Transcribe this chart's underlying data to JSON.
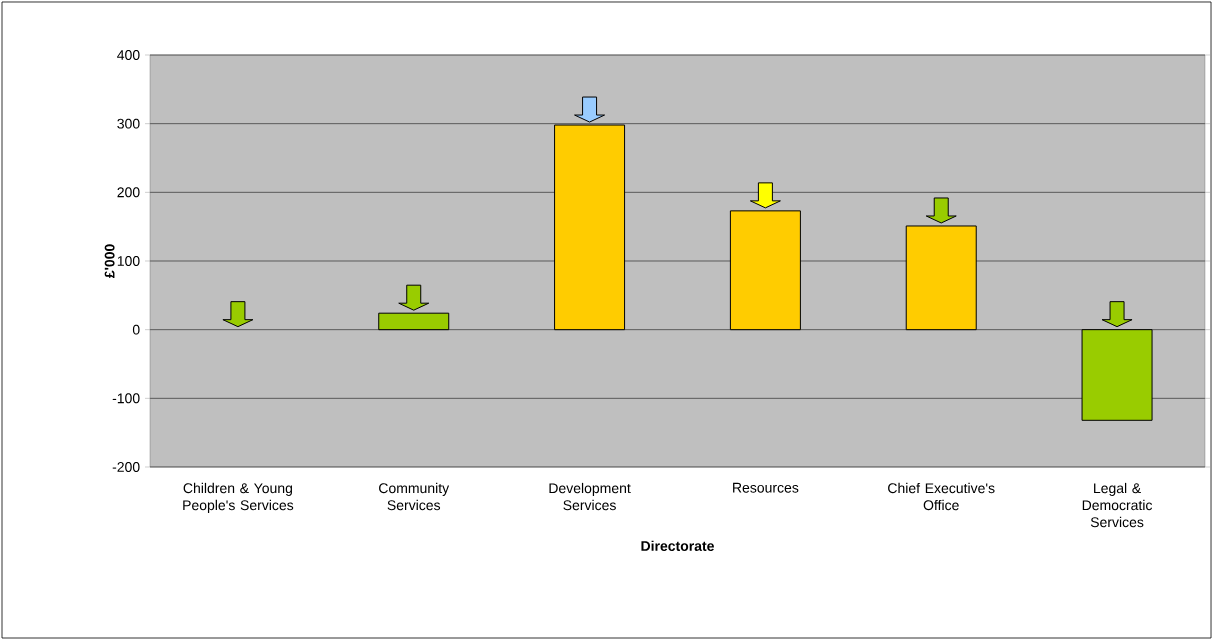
{
  "chart_data": {
    "type": "bar",
    "xlabel": "Directorate",
    "ylabel": "£'000",
    "categories": [
      "Children & Young People's Services",
      "Community Services",
      "Development Services",
      "Resources",
      "Chief Executive's Office",
      "Legal & Democratic Services"
    ],
    "values": [
      0,
      24,
      298,
      173,
      151,
      -132
    ],
    "colors": [
      "#99cc00",
      "#99cc00",
      "#ffcc00",
      "#ffcc00",
      "#ffcc00",
      "#99cc00"
    ],
    "ylim": [
      -200,
      400
    ],
    "yticks": [
      -200,
      -100,
      0,
      100,
      200,
      300,
      400
    ],
    "grid": "y"
  }
}
